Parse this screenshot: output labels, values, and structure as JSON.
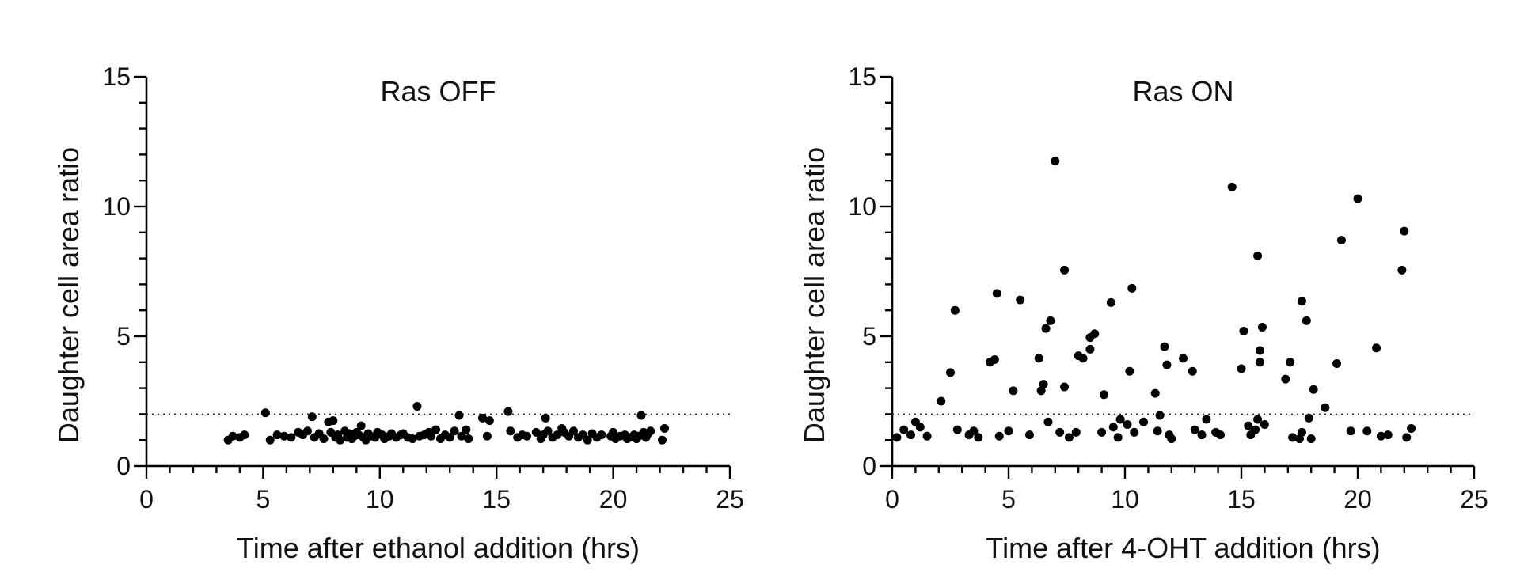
{
  "chart_data": [
    {
      "type": "scatter",
      "title": "Ras OFF",
      "xlabel": "Time after ethanol addition (hrs)",
      "ylabel": "Daughter cell area ratio",
      "xlim": [
        0,
        25
      ],
      "ylim": [
        0,
        15
      ],
      "xticks": [
        "0",
        "5",
        "10",
        "15",
        "20",
        "25"
      ],
      "yticks": [
        "0",
        "5",
        "10",
        "15"
      ],
      "reference_line_y": 2,
      "reference_line_style": "dotted",
      "grid": false,
      "points": [
        [
          3.5,
          1.0
        ],
        [
          3.7,
          1.15
        ],
        [
          4.0,
          1.1
        ],
        [
          4.2,
          1.2
        ],
        [
          5.1,
          2.05
        ],
        [
          5.3,
          1.0
        ],
        [
          5.6,
          1.2
        ],
        [
          5.9,
          1.15
        ],
        [
          6.2,
          1.1
        ],
        [
          6.5,
          1.3
        ],
        [
          6.7,
          1.2
        ],
        [
          6.9,
          1.35
        ],
        [
          7.1,
          1.9
        ],
        [
          7.2,
          1.1
        ],
        [
          7.4,
          1.25
        ],
        [
          7.6,
          1.05
        ],
        [
          7.8,
          1.7
        ],
        [
          7.9,
          1.3
        ],
        [
          8.0,
          1.75
        ],
        [
          8.1,
          1.1
        ],
        [
          8.2,
          1.2
        ],
        [
          8.3,
          1.0
        ],
        [
          8.5,
          1.35
        ],
        [
          8.6,
          1.1
        ],
        [
          8.7,
          1.25
        ],
        [
          8.8,
          1.05
        ],
        [
          8.9,
          1.15
        ],
        [
          9.0,
          1.3
        ],
        [
          9.1,
          1.2
        ],
        [
          9.2,
          1.55
        ],
        [
          9.3,
          1.1
        ],
        [
          9.4,
          1.0
        ],
        [
          9.5,
          1.25
        ],
        [
          9.6,
          1.15
        ],
        [
          9.8,
          1.1
        ],
        [
          9.9,
          1.3
        ],
        [
          10.1,
          1.2
        ],
        [
          10.2,
          1.05
        ],
        [
          10.4,
          1.15
        ],
        [
          10.5,
          1.25
        ],
        [
          10.7,
          1.1
        ],
        [
          10.9,
          1.2
        ],
        [
          11.0,
          1.25
        ],
        [
          11.2,
          1.1
        ],
        [
          11.4,
          1.05
        ],
        [
          11.6,
          2.3
        ],
        [
          11.7,
          1.15
        ],
        [
          11.9,
          1.2
        ],
        [
          12.1,
          1.3
        ],
        [
          12.2,
          1.15
        ],
        [
          12.4,
          1.4
        ],
        [
          12.6,
          1.05
        ],
        [
          12.8,
          1.2
        ],
        [
          13.0,
          1.1
        ],
        [
          13.2,
          1.35
        ],
        [
          13.4,
          1.95
        ],
        [
          13.5,
          1.15
        ],
        [
          13.7,
          1.4
        ],
        [
          13.8,
          1.05
        ],
        [
          14.4,
          1.85
        ],
        [
          14.6,
          1.15
        ],
        [
          14.7,
          1.75
        ],
        [
          15.5,
          2.1
        ],
        [
          15.6,
          1.35
        ],
        [
          15.9,
          1.1
        ],
        [
          16.1,
          1.2
        ],
        [
          16.3,
          1.15
        ],
        [
          16.7,
          1.3
        ],
        [
          16.9,
          1.05
        ],
        [
          17.0,
          1.2
        ],
        [
          17.1,
          1.85
        ],
        [
          17.2,
          1.35
        ],
        [
          17.4,
          1.1
        ],
        [
          17.6,
          1.2
        ],
        [
          17.8,
          1.45
        ],
        [
          17.9,
          1.3
        ],
        [
          18.1,
          1.15
        ],
        [
          18.3,
          1.35
        ],
        [
          18.5,
          1.1
        ],
        [
          18.7,
          1.2
        ],
        [
          18.9,
          1.0
        ],
        [
          19.1,
          1.25
        ],
        [
          19.3,
          1.1
        ],
        [
          19.5,
          1.2
        ],
        [
          19.9,
          1.15
        ],
        [
          20.0,
          1.3
        ],
        [
          20.1,
          1.05
        ],
        [
          20.3,
          1.15
        ],
        [
          20.5,
          1.2
        ],
        [
          20.6,
          1.05
        ],
        [
          20.7,
          1.1
        ],
        [
          20.9,
          1.2
        ],
        [
          21.0,
          1.05
        ],
        [
          21.1,
          1.15
        ],
        [
          21.2,
          1.95
        ],
        [
          21.3,
          1.3
        ],
        [
          21.4,
          1.1
        ],
        [
          21.5,
          1.25
        ],
        [
          21.6,
          1.35
        ],
        [
          22.1,
          1.0
        ],
        [
          22.2,
          1.45
        ]
      ]
    },
    {
      "type": "scatter",
      "title": "Ras ON",
      "xlabel": "Time after 4-OHT addition (hrs)",
      "ylabel": "Daughter cell area ratio",
      "xlim": [
        0,
        25
      ],
      "ylim": [
        0,
        15
      ],
      "xticks": [
        "0",
        "5",
        "10",
        "15",
        "20",
        "25"
      ],
      "yticks": [
        "0",
        "5",
        "10",
        "15"
      ],
      "reference_line_y": 2,
      "reference_line_style": "dotted",
      "grid": false,
      "points": [
        [
          0.2,
          1.1
        ],
        [
          0.5,
          1.4
        ],
        [
          0.8,
          1.2
        ],
        [
          1.0,
          1.7
        ],
        [
          1.2,
          1.5
        ],
        [
          1.5,
          1.15
        ],
        [
          2.1,
          2.5
        ],
        [
          2.5,
          3.6
        ],
        [
          2.7,
          6.0
        ],
        [
          2.8,
          1.4
        ],
        [
          3.3,
          1.2
        ],
        [
          3.5,
          1.35
        ],
        [
          3.7,
          1.1
        ],
        [
          4.2,
          4.0
        ],
        [
          4.4,
          4.1
        ],
        [
          4.5,
          6.65
        ],
        [
          4.6,
          1.15
        ],
        [
          5.0,
          1.35
        ],
        [
          5.2,
          2.9
        ],
        [
          5.5,
          6.4
        ],
        [
          5.9,
          1.2
        ],
        [
          6.3,
          4.15
        ],
        [
          6.4,
          2.9
        ],
        [
          6.5,
          3.15
        ],
        [
          6.6,
          5.3
        ],
        [
          6.7,
          1.7
        ],
        [
          6.8,
          5.6
        ],
        [
          7.0,
          11.75
        ],
        [
          7.2,
          1.3
        ],
        [
          7.4,
          7.55
        ],
        [
          7.4,
          3.05
        ],
        [
          7.6,
          1.1
        ],
        [
          7.9,
          1.3
        ],
        [
          8.0,
          4.25
        ],
        [
          8.2,
          4.15
        ],
        [
          8.5,
          4.5
        ],
        [
          8.5,
          4.95
        ],
        [
          8.7,
          5.1
        ],
        [
          9.0,
          1.3
        ],
        [
          9.1,
          2.75
        ],
        [
          9.4,
          6.3
        ],
        [
          9.5,
          1.5
        ],
        [
          9.7,
          1.1
        ],
        [
          9.8,
          1.8
        ],
        [
          10.1,
          1.6
        ],
        [
          10.2,
          3.65
        ],
        [
          10.3,
          6.85
        ],
        [
          10.4,
          1.3
        ],
        [
          10.8,
          1.7
        ],
        [
          11.3,
          2.8
        ],
        [
          11.4,
          1.35
        ],
        [
          11.5,
          1.95
        ],
        [
          11.7,
          4.6
        ],
        [
          11.8,
          3.9
        ],
        [
          11.9,
          1.2
        ],
        [
          12.0,
          1.05
        ],
        [
          12.5,
          4.15
        ],
        [
          12.9,
          3.65
        ],
        [
          13.0,
          1.4
        ],
        [
          13.3,
          1.2
        ],
        [
          13.5,
          1.8
        ],
        [
          13.9,
          1.3
        ],
        [
          14.1,
          1.2
        ],
        [
          14.6,
          10.75
        ],
        [
          15.0,
          3.75
        ],
        [
          15.1,
          5.2
        ],
        [
          15.3,
          1.55
        ],
        [
          15.4,
          1.2
        ],
        [
          15.6,
          1.4
        ],
        [
          15.7,
          1.8
        ],
        [
          15.7,
          8.1
        ],
        [
          15.8,
          4.45
        ],
        [
          15.8,
          4.0
        ],
        [
          15.9,
          5.35
        ],
        [
          16.0,
          1.6
        ],
        [
          16.9,
          3.35
        ],
        [
          17.1,
          4.0
        ],
        [
          17.2,
          1.1
        ],
        [
          17.5,
          1.05
        ],
        [
          17.6,
          6.35
        ],
        [
          17.6,
          1.3
        ],
        [
          17.8,
          5.6
        ],
        [
          17.9,
          1.85
        ],
        [
          18.0,
          1.05
        ],
        [
          18.1,
          2.95
        ],
        [
          18.6,
          2.25
        ],
        [
          19.1,
          3.95
        ],
        [
          19.3,
          8.7
        ],
        [
          19.7,
          1.35
        ],
        [
          20.0,
          10.3
        ],
        [
          20.4,
          1.35
        ],
        [
          20.8,
          4.55
        ],
        [
          21.0,
          1.15
        ],
        [
          21.3,
          1.2
        ],
        [
          21.9,
          7.55
        ],
        [
          22.0,
          9.05
        ],
        [
          22.1,
          1.1
        ],
        [
          22.3,
          1.45
        ]
      ]
    }
  ]
}
